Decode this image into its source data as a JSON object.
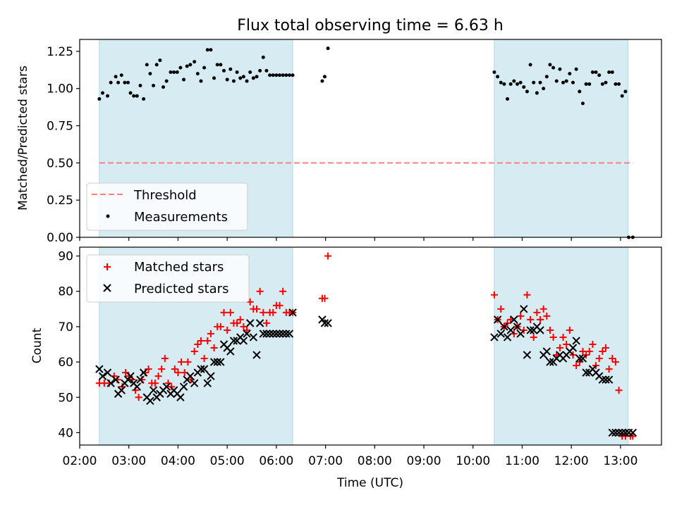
{
  "chart_data": [
    {
      "type": "scatter",
      "title": "Flux total observing time = 6.63 h",
      "xlabel": "",
      "ylabel": "Matched/Predicted stars",
      "xlim": [
        "02:00",
        "13:50"
      ],
      "ylim": [
        0.0,
        1.33
      ],
      "yticks": [
        0.0,
        0.25,
        0.5,
        0.75,
        1.0,
        1.25
      ],
      "ytick_labels": [
        "0.00",
        "0.25",
        "0.50",
        "0.75",
        "1.00",
        "1.25"
      ],
      "grid": false,
      "legend": "lower-left",
      "shaded_intervals": [
        [
          "02:24",
          "06:20"
        ],
        [
          "10:26",
          "13:09"
        ]
      ],
      "shade_color": "#add8e6",
      "series": [
        {
          "name": "Threshold",
          "kind": "dashed-line",
          "color": "#ff7f7f",
          "x": [
            "02:24",
            "13:15"
          ],
          "y": [
            0.5,
            0.5
          ]
        },
        {
          "name": "Measurements",
          "kind": "dots",
          "color": "#000000",
          "x": [
            "02:24",
            "02:28",
            "02:34",
            "02:38",
            "02:44",
            "02:47",
            "02:51",
            "02:55",
            "02:59",
            "03:02",
            "03:06",
            "03:10",
            "03:14",
            "03:18",
            "03:22",
            "03:26",
            "03:30",
            "03:34",
            "03:38",
            "03:42",
            "03:46",
            "03:51",
            "03:55",
            "03:59",
            "04:03",
            "04:07",
            "04:11",
            "04:15",
            "04:20",
            "04:24",
            "04:28",
            "04:32",
            "04:36",
            "04:40",
            "04:44",
            "04:48",
            "04:52",
            "04:56",
            "05:00",
            "05:04",
            "05:08",
            "05:12",
            "05:16",
            "05:20",
            "05:24",
            "05:28",
            "05:32",
            "05:36",
            "05:40",
            "05:44",
            "05:48",
            "05:52",
            "05:56",
            "06:00",
            "06:04",
            "06:08",
            "06:12",
            "06:16",
            "06:20",
            "06:56",
            "06:59",
            "07:03",
            "10:26",
            "10:30",
            "10:34",
            "10:38",
            "10:42",
            "10:46",
            "10:50",
            "10:54",
            "10:58",
            "11:02",
            "11:06",
            "11:10",
            "11:14",
            "11:18",
            "11:22",
            "11:26",
            "11:30",
            "11:34",
            "11:38",
            "11:42",
            "11:46",
            "11:50",
            "11:54",
            "11:58",
            "12:02",
            "12:06",
            "12:10",
            "12:14",
            "12:18",
            "12:22",
            "12:26",
            "12:30",
            "12:34",
            "12:38",
            "12:42",
            "12:46",
            "12:50",
            "12:54",
            "12:58",
            "13:02",
            "13:06",
            "13:10",
            "13:15"
          ],
          "y": [
            0.93,
            0.97,
            0.95,
            1.04,
            1.08,
            1.04,
            1.09,
            1.04,
            1.04,
            0.97,
            0.95,
            0.95,
            1.02,
            0.93,
            1.16,
            1.1,
            1.02,
            1.16,
            1.19,
            1.01,
            1.05,
            1.11,
            1.11,
            1.11,
            1.14,
            1.06,
            1.15,
            1.16,
            1.18,
            1.1,
            1.05,
            1.14,
            1.26,
            1.26,
            1.07,
            1.16,
            1.16,
            1.12,
            1.06,
            1.13,
            1.05,
            1.11,
            1.07,
            1.08,
            1.05,
            1.11,
            1.07,
            1.08,
            1.12,
            1.21,
            1.12,
            1.09,
            1.09,
            1.09,
            1.09,
            1.09,
            1.09,
            1.09,
            1.09,
            1.05,
            1.08,
            1.27,
            1.11,
            1.08,
            1.04,
            1.03,
            0.93,
            1.03,
            1.05,
            1.03,
            1.04,
            1.01,
            0.98,
            1.16,
            1.04,
            0.97,
            1.04,
            1.0,
            1.08,
            1.16,
            1.14,
            1.05,
            1.13,
            1.04,
            1.05,
            1.1,
            1.04,
            1.13,
            0.98,
            0.9,
            1.03,
            1.03,
            1.11,
            1.11,
            1.09,
            1.03,
            1.04,
            1.11,
            1.11,
            1.03,
            1.03,
            0.95,
            0.98,
            0.0,
            0.0
          ]
        }
      ]
    },
    {
      "type": "scatter",
      "title": "",
      "xlabel": "Time (UTC)",
      "ylabel": "Count",
      "xlim": [
        "02:00",
        "13:50"
      ],
      "xticks": [
        "02:00",
        "03:00",
        "04:00",
        "05:00",
        "06:00",
        "07:00",
        "08:00",
        "09:00",
        "10:00",
        "11:00",
        "12:00",
        "13:00"
      ],
      "ylim": [
        36.5,
        92.5
      ],
      "yticks": [
        40,
        50,
        60,
        70,
        80,
        90
      ],
      "grid": false,
      "legend": "top-left",
      "shaded_intervals": [
        [
          "02:24",
          "06:20"
        ],
        [
          "10:26",
          "13:09"
        ]
      ],
      "shade_color": "#add8e6",
      "series": [
        {
          "name": "Matched stars",
          "marker": "plus",
          "color": "#ff0000",
          "x": [
            "02:24",
            "02:30",
            "02:36",
            "02:42",
            "02:46",
            "02:52",
            "02:56",
            "03:00",
            "03:04",
            "03:08",
            "03:12",
            "03:16",
            "03:20",
            "03:24",
            "03:28",
            "03:32",
            "03:36",
            "03:40",
            "03:44",
            "03:48",
            "03:52",
            "03:56",
            "04:00",
            "04:04",
            "04:08",
            "04:12",
            "04:16",
            "04:20",
            "04:24",
            "04:28",
            "04:32",
            "04:36",
            "04:40",
            "04:44",
            "04:48",
            "04:52",
            "04:56",
            "05:00",
            "05:04",
            "05:08",
            "05:12",
            "05:16",
            "05:20",
            "05:24",
            "05:28",
            "05:32",
            "05:36",
            "05:40",
            "05:44",
            "05:48",
            "05:52",
            "05:56",
            "06:00",
            "06:04",
            "06:08",
            "06:12",
            "06:16",
            "06:20",
            "06:56",
            "06:59",
            "07:03",
            "10:26",
            "10:30",
            "10:34",
            "10:38",
            "10:42",
            "10:46",
            "10:50",
            "10:54",
            "10:58",
            "11:02",
            "11:06",
            "11:10",
            "11:14",
            "11:18",
            "11:22",
            "11:26",
            "11:30",
            "11:34",
            "11:38",
            "11:42",
            "11:46",
            "11:50",
            "11:54",
            "11:58",
            "12:02",
            "12:06",
            "12:10",
            "12:14",
            "12:18",
            "12:22",
            "12:26",
            "12:30",
            "12:34",
            "12:38",
            "12:42",
            "12:46",
            "12:50",
            "12:54",
            "12:58",
            "13:02",
            "13:06",
            "13:12",
            "13:15"
          ],
          "y": [
            54,
            54,
            54,
            56,
            55,
            53,
            57,
            56,
            55,
            52,
            50,
            55,
            57,
            58,
            54,
            54,
            56,
            58,
            61,
            54,
            53,
            58,
            57,
            60,
            57,
            60,
            55,
            63,
            65,
            66,
            61,
            66,
            68,
            64,
            70,
            70,
            74,
            69,
            74,
            71,
            71,
            72,
            70,
            69,
            77,
            75,
            75,
            80,
            74,
            71,
            74,
            74,
            76,
            76,
            80,
            74,
            74,
            74,
            78,
            78,
            90,
            79,
            72,
            75,
            70,
            71,
            72,
            68,
            70,
            73,
            69,
            79,
            72,
            67,
            74,
            72,
            75,
            73,
            69,
            67,
            62,
            64,
            67,
            65,
            69,
            62,
            59,
            60,
            63,
            62,
            63,
            65,
            59,
            61,
            63,
            64,
            58,
            61,
            60,
            52,
            39,
            39,
            39,
            39
          ]
        },
        {
          "name": "Predicted stars",
          "marker": "x",
          "color": "#000000",
          "x": [
            "02:24",
            "02:28",
            "02:34",
            "02:38",
            "02:44",
            "02:47",
            "02:51",
            "02:55",
            "02:59",
            "03:02",
            "03:06",
            "03:10",
            "03:14",
            "03:18",
            "03:22",
            "03:26",
            "03:30",
            "03:34",
            "03:38",
            "03:42",
            "03:46",
            "03:51",
            "03:55",
            "03:59",
            "04:03",
            "04:07",
            "04:11",
            "04:15",
            "04:20",
            "04:24",
            "04:28",
            "04:32",
            "04:36",
            "04:40",
            "04:44",
            "04:48",
            "04:52",
            "04:56",
            "05:00",
            "05:04",
            "05:08",
            "05:12",
            "05:16",
            "05:20",
            "05:24",
            "05:28",
            "05:32",
            "05:36",
            "05:40",
            "05:44",
            "05:48",
            "05:52",
            "05:56",
            "06:00",
            "06:04",
            "06:08",
            "06:12",
            "06:16",
            "06:20",
            "06:56",
            "06:59",
            "07:03",
            "10:26",
            "10:30",
            "10:34",
            "10:38",
            "10:42",
            "10:46",
            "10:50",
            "10:54",
            "10:58",
            "11:02",
            "11:06",
            "11:10",
            "11:14",
            "11:18",
            "11:22",
            "11:26",
            "11:30",
            "11:34",
            "11:38",
            "11:42",
            "11:46",
            "11:50",
            "11:54",
            "11:58",
            "12:02",
            "12:06",
            "12:10",
            "12:14",
            "12:18",
            "12:22",
            "12:26",
            "12:30",
            "12:34",
            "12:38",
            "12:42",
            "12:46",
            "12:50",
            "12:54",
            "12:58",
            "13:02",
            "13:06",
            "13:10",
            "13:15"
          ],
          "y": [
            58,
            56,
            57,
            54,
            55,
            51,
            52,
            54,
            55,
            56,
            54,
            53,
            55,
            57,
            50,
            49,
            52,
            50,
            51,
            52,
            53,
            51,
            52,
            51,
            50,
            53,
            55,
            56,
            54,
            57,
            58,
            58,
            54,
            56,
            60,
            60,
            60,
            65,
            64,
            63,
            66,
            66,
            67,
            66,
            68,
            71,
            67,
            62,
            71,
            68,
            68,
            68,
            68,
            68,
            68,
            68,
            68,
            68,
            74,
            72,
            71,
            71,
            67,
            72,
            68,
            70,
            67,
            69,
            72,
            70,
            68,
            75,
            62,
            69,
            69,
            70,
            69,
            62,
            63,
            60,
            60,
            61,
            62,
            61,
            62,
            63,
            64,
            66,
            61,
            61,
            57,
            57,
            58,
            57,
            56,
            55,
            55,
            55,
            40,
            40,
            40,
            40,
            40,
            40,
            40
          ]
        }
      ]
    }
  ]
}
